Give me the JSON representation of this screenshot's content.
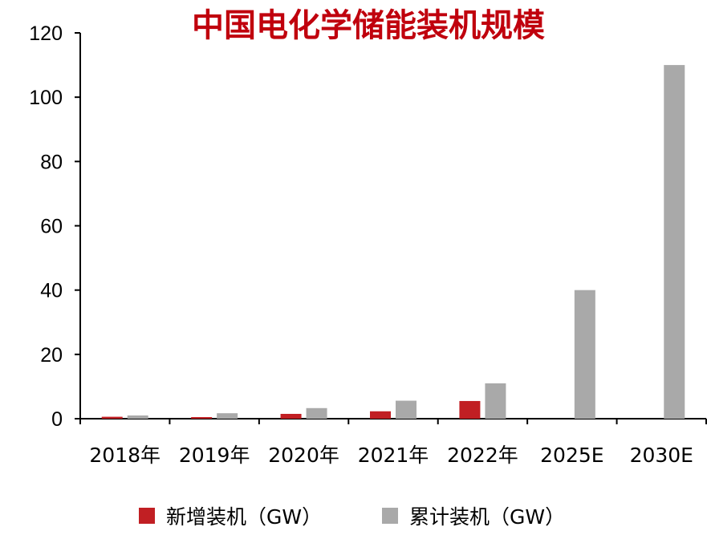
{
  "chart_data": {
    "type": "bar",
    "title": "中国电化学储能装机规模",
    "categories": [
      "2018年",
      "2019年",
      "2020年",
      "2021年",
      "2022年",
      "2025E",
      "2030E"
    ],
    "series": [
      {
        "name": "新增装机（GW）",
        "values": [
          0.6,
          0.5,
          1.5,
          2.3,
          5.5,
          null,
          null
        ]
      },
      {
        "name": "累计装机（GW）",
        "values": [
          1.0,
          1.7,
          3.3,
          5.6,
          11.0,
          40,
          110
        ]
      }
    ],
    "ylim": [
      0,
      120
    ],
    "yticks": [
      0,
      20,
      40,
      60,
      80,
      100,
      120
    ],
    "xlabel": "",
    "ylabel": "",
    "grid": false,
    "legend_position": "bottom",
    "colors": {
      "title": "#c0000d",
      "series": [
        "#c11f23",
        "#a9a9a9"
      ],
      "axis": "#000000"
    }
  }
}
